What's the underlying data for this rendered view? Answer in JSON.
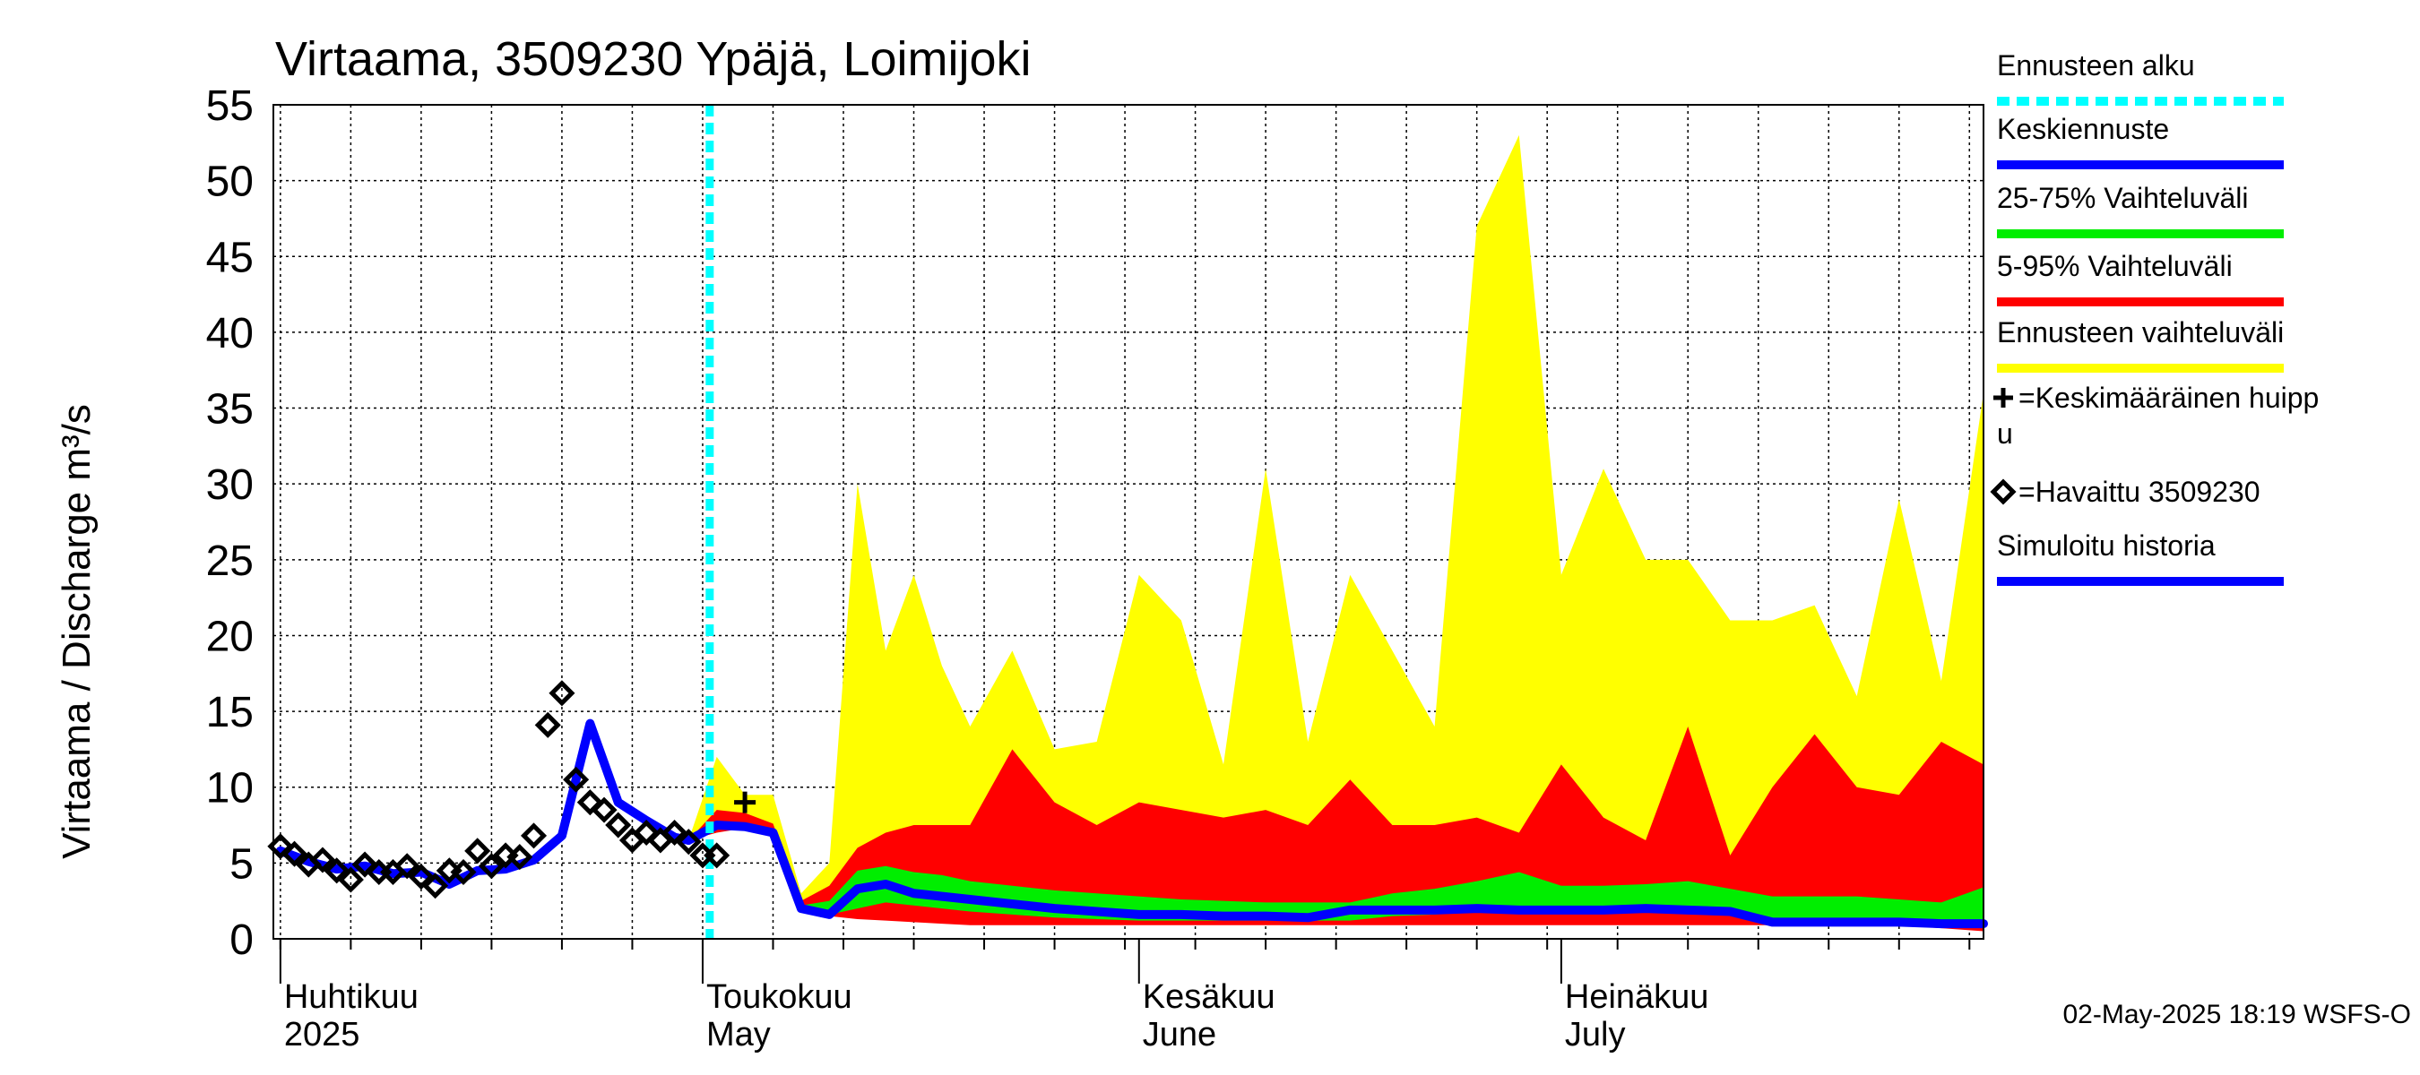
{
  "chart_data": {
    "type": "area",
    "title": "Virtaama, 3509230 Ypäjä, Loimijoki",
    "ylabel": "Virtaama / Discharge   m³/s",
    "ylim": [
      0,
      55
    ],
    "xlim": [
      -0.5,
      121
    ],
    "grid": true,
    "y_ticks": [
      0,
      5,
      10,
      15,
      20,
      25,
      30,
      35,
      40,
      45,
      50,
      55
    ],
    "x_ticks": [
      {
        "day": 0,
        "label1": "Huhtikuu",
        "label2": "2025"
      },
      {
        "day": 30,
        "label1": "Toukokuu",
        "label2": "May"
      },
      {
        "day": 61,
        "label1": "Kesäkuu",
        "label2": "June"
      },
      {
        "day": 91,
        "label1": "Heinäkuu",
        "label2": "July"
      }
    ],
    "minor_tick_step_days": 5,
    "forecast_start_day": 30.5,
    "x_unit": "days since 2025-04-01",
    "series": [
      {
        "name": "Ennusteen vaihteluväli",
        "color": "#ffff00",
        "kind": "band",
        "x": [
          29,
          31,
          33,
          35,
          37,
          39,
          41,
          43,
          45,
          47,
          49,
          52,
          55,
          58,
          61,
          64,
          67,
          70,
          73,
          76,
          79,
          82,
          85,
          88,
          91,
          94,
          97,
          100,
          103,
          106,
          109,
          112,
          115,
          118,
          121
        ],
        "upper": [
          6.5,
          12,
          9.5,
          9.5,
          3,
          5,
          30,
          19,
          24,
          18,
          14,
          19,
          12.5,
          13,
          24,
          21,
          11.5,
          31,
          13,
          24,
          19,
          14,
          47,
          53,
          24,
          31,
          25,
          25,
          21,
          21,
          22,
          16,
          29,
          17,
          36
        ],
        "lower": [
          6.5,
          7,
          7.5,
          7,
          2.5,
          1.5,
          1.5,
          1.4,
          1.3,
          1.2,
          1.1,
          1.0,
          1.0,
          1.0,
          1.0,
          1.0,
          1.0,
          1.0,
          1.0,
          1.0,
          1.0,
          1.0,
          1.0,
          1.0,
          1.0,
          1.0,
          1.0,
          1.0,
          1.0,
          1.0,
          1.0,
          1.0,
          1.0,
          0.8,
          0.6
        ]
      },
      {
        "name": "5-95% Vaihteluväli",
        "color": "#ff0000",
        "kind": "band",
        "x": [
          29,
          31,
          33,
          35,
          37,
          39,
          41,
          43,
          45,
          47,
          49,
          52,
          55,
          58,
          61,
          64,
          67,
          70,
          73,
          76,
          79,
          82,
          85,
          88,
          91,
          94,
          97,
          100,
          103,
          106,
          109,
          112,
          115,
          118,
          121
        ],
        "upper": [
          6.5,
          8.5,
          8.3,
          7.6,
          2.5,
          3.5,
          6,
          7,
          7.5,
          7.5,
          7.5,
          12.5,
          9,
          7.5,
          9,
          8.5,
          8,
          8.5,
          7.5,
          10.5,
          7.5,
          7.5,
          8,
          7,
          11.5,
          8,
          6.5,
          14,
          5.5,
          10,
          13.5,
          10,
          9.5,
          13,
          11.5
        ],
        "lower": [
          6.5,
          7,
          7.3,
          6.8,
          2,
          1.5,
          1.3,
          1.2,
          1.1,
          1.0,
          0.9,
          0.9,
          0.9,
          0.9,
          0.9,
          0.9,
          0.9,
          0.9,
          0.9,
          0.9,
          0.9,
          0.9,
          0.9,
          0.9,
          0.9,
          0.9,
          0.9,
          0.9,
          0.9,
          0.9,
          0.9,
          0.9,
          0.9,
          0.7,
          0.5
        ]
      },
      {
        "name": "25-75% Vaihteluväli",
        "color": "#00ee00",
        "kind": "band",
        "x": [
          29,
          31,
          33,
          35,
          37,
          39,
          41,
          43,
          45,
          47,
          49,
          52,
          55,
          58,
          61,
          64,
          67,
          70,
          73,
          76,
          79,
          82,
          85,
          88,
          91,
          94,
          97,
          100,
          103,
          106,
          109,
          112,
          115,
          118,
          121
        ],
        "upper": [
          6.5,
          7.8,
          7.6,
          7.1,
          2.2,
          2.5,
          4.5,
          4.8,
          4.4,
          4.2,
          3.8,
          3.5,
          3.2,
          3.0,
          2.8,
          2.6,
          2.5,
          2.4,
          2.4,
          2.4,
          3.0,
          3.3,
          3.8,
          4.4,
          3.5,
          3.5,
          3.6,
          3.8,
          3.3,
          2.8,
          2.8,
          2.8,
          2.6,
          2.4,
          3.4
        ],
        "lower": [
          6.5,
          7.2,
          7.3,
          6.9,
          2,
          1.6,
          2.0,
          2.4,
          2.2,
          2.0,
          1.8,
          1.6,
          1.4,
          1.3,
          1.2,
          1.2,
          1.2,
          1.2,
          1.2,
          1.2,
          1.5,
          1.6,
          1.8,
          1.8,
          1.8,
          1.8,
          1.8,
          1.8,
          1.6,
          1.2,
          1.2,
          1.2,
          1.1,
          1.0,
          1.0
        ]
      },
      {
        "name": "Keskiennuste",
        "color": "#0000ff",
        "kind": "line",
        "x": [
          29,
          31,
          33,
          35,
          37,
          39,
          41,
          43,
          45,
          47,
          49,
          52,
          55,
          58,
          61,
          64,
          67,
          70,
          73,
          76,
          79,
          82,
          85,
          88,
          91,
          94,
          97,
          100,
          103,
          106,
          109,
          112,
          115,
          118,
          121
        ],
        "y": [
          6.5,
          7.5,
          7.4,
          7.0,
          2,
          1.6,
          3.3,
          3.6,
          3.0,
          2.8,
          2.6,
          2.3,
          2.0,
          1.8,
          1.6,
          1.6,
          1.5,
          1.5,
          1.4,
          1.9,
          1.9,
          1.9,
          2.0,
          1.9,
          1.9,
          1.9,
          2.0,
          1.9,
          1.8,
          1.1,
          1.1,
          1.1,
          1.1,
          1.0,
          1.0
        ]
      },
      {
        "name": "Simuloitu historia",
        "color": "#0000ff",
        "kind": "line",
        "x": [
          0,
          2,
          4,
          6,
          8,
          10,
          12,
          14,
          16,
          18,
          20,
          22,
          24,
          26,
          28,
          29
        ],
        "y": [
          5.8,
          5.1,
          4.6,
          4.8,
          4.3,
          4.4,
          3.6,
          4.5,
          4.6,
          5.2,
          6.8,
          14.2,
          9.0,
          7.8,
          6.7,
          6.5
        ]
      },
      {
        "name": "Havaittu 3509230",
        "color": "#000000",
        "kind": "markers",
        "marker": "diamond",
        "x": [
          0,
          1,
          2,
          3,
          4,
          5,
          6,
          7,
          8,
          9,
          10,
          11,
          12,
          13,
          14,
          15,
          16,
          17,
          18,
          19,
          20,
          21,
          22,
          23,
          24,
          25,
          26,
          27,
          28,
          29,
          30,
          31
        ],
        "y": [
          6.1,
          5.6,
          4.9,
          5.2,
          4.5,
          3.9,
          4.9,
          4.4,
          4.4,
          4.8,
          4.1,
          3.5,
          4.5,
          4.4,
          5.8,
          4.8,
          5.5,
          5.4,
          6.8,
          14.1,
          16.2,
          10.5,
          9,
          8.5,
          7.5,
          6.5,
          7.0,
          6.5,
          7.0,
          6.4,
          5.5,
          5.5
        ]
      },
      {
        "name": "Keskimääräinen huippu",
        "color": "#000000",
        "kind": "markers",
        "marker": "plus",
        "x": [
          33
        ],
        "y": [
          9
        ]
      }
    ]
  },
  "legend": {
    "items": [
      {
        "label": "Ennusteen alku",
        "color": "#00ffff",
        "style": "dotted"
      },
      {
        "label": "Keskiennuste",
        "color": "#0000ff",
        "style": "solid"
      },
      {
        "label": "25-75% Vaihteluväli",
        "color": "#00ee00",
        "style": "solid"
      },
      {
        "label": "5-95% Vaihteluväli",
        "color": "#ff0000",
        "style": "solid"
      },
      {
        "label": "Ennusteen vaihteluväli",
        "color": "#ffff00",
        "style": "solid"
      },
      {
        "label1": "=Keskimääräinen huipp",
        "label2": "u",
        "marker": "plus"
      },
      {
        "label": "=Havaittu 3509230",
        "marker": "diamond"
      },
      {
        "label": "Simuloitu historia",
        "color": "#0000ff",
        "style": "solid"
      }
    ]
  },
  "footer": {
    "timestamp": "02-May-2025 18:19 WSFS-O"
  }
}
